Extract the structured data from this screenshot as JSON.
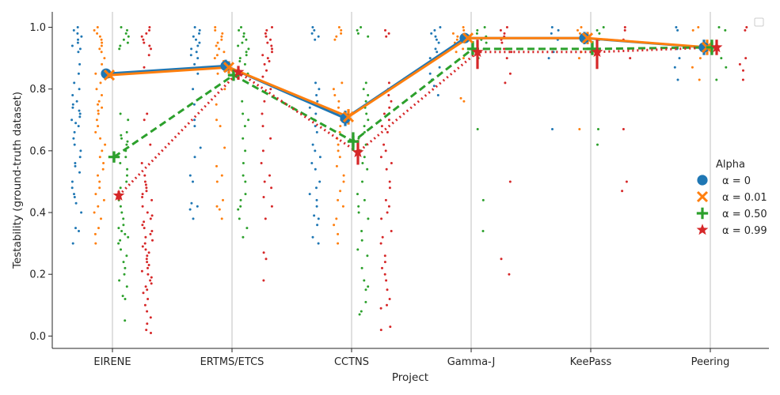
{
  "chart_data": {
    "type": "scatter",
    "title": "",
    "xlabel": "Project",
    "ylabel": "Testability (ground-truth dataset)",
    "ylim": [
      -0.04,
      1.05
    ],
    "yticks": [
      "0.0",
      "0.2",
      "0.4",
      "0.6",
      "0.8",
      "1.0"
    ],
    "categories": [
      "EIRENE",
      "ERTMS/ETCS",
      "CCTNS",
      "Gamma-J",
      "KeePass",
      "Peering"
    ],
    "grid": "vertical at categories",
    "legend": {
      "title": "Alpha",
      "position": "right",
      "entries": [
        "α = 0",
        "α = 0.01",
        "α = 0.50",
        "α = 0.99"
      ]
    },
    "series": [
      {
        "name": "α = 0",
        "color": "#1f77b4",
        "marker": "circle",
        "linestyle": "solid",
        "means": [
          0.85,
          0.875,
          0.705,
          0.965,
          0.965,
          0.935
        ],
        "ci_low": [
          0.84,
          0.855,
          0.68,
          0.955,
          0.945,
          0.91
        ],
        "ci_high": [
          0.86,
          0.895,
          0.73,
          0.975,
          0.985,
          0.96
        ],
        "points": [
          [
            1.0,
            0.99,
            0.98,
            0.97,
            0.96,
            0.95,
            0.94,
            0.93,
            0.92,
            0.88,
            0.85,
            0.82,
            0.8,
            0.78,
            0.76,
            0.75,
            0.74,
            0.73,
            0.72,
            0.71,
            0.7,
            0.69,
            0.68,
            0.66,
            0.64,
            0.62,
            0.6,
            0.58,
            0.56,
            0.55,
            0.53,
            0.5,
            0.48,
            0.46,
            0.45,
            0.43,
            0.4,
            0.35,
            0.34,
            0.3
          ],
          [
            1.0,
            0.99,
            0.98,
            0.97,
            0.96,
            0.95,
            0.94,
            0.93,
            0.92,
            0.91,
            0.9,
            0.88,
            0.85,
            0.8,
            0.75,
            0.7,
            0.68,
            0.61,
            0.58,
            0.52,
            0.5,
            0.43,
            0.42,
            0.41,
            0.38
          ],
          [
            1.0,
            0.99,
            0.98,
            0.97,
            0.96,
            0.82,
            0.8,
            0.78,
            0.76,
            0.74,
            0.72,
            0.7,
            0.68,
            0.66,
            0.62,
            0.6,
            0.58,
            0.56,
            0.54,
            0.5,
            0.48,
            0.46,
            0.44,
            0.42,
            0.39,
            0.38,
            0.36,
            0.32,
            0.3
          ],
          [
            1.0,
            0.99,
            0.98,
            0.97,
            0.96,
            0.95,
            0.93,
            0.92,
            0.9,
            0.87,
            0.85,
            0.83,
            0.81,
            0.78
          ],
          [
            1.0,
            0.99,
            0.98,
            0.96,
            0.93,
            0.92,
            0.9,
            0.67
          ],
          [
            1.0,
            0.99,
            0.93,
            0.9,
            0.87,
            0.83
          ]
        ]
      },
      {
        "name": "α = 0.01",
        "color": "#ff7f0e",
        "marker": "x",
        "linestyle": "solid",
        "means": [
          0.845,
          0.87,
          0.71,
          0.965,
          0.965,
          0.935
        ],
        "ci_low": [
          0.835,
          0.85,
          0.685,
          0.955,
          0.945,
          0.91
        ],
        "ci_high": [
          0.855,
          0.89,
          0.735,
          0.975,
          0.985,
          0.96
        ],
        "points": [
          [
            1.0,
            0.99,
            0.98,
            0.97,
            0.96,
            0.95,
            0.94,
            0.93,
            0.92,
            0.9,
            0.88,
            0.85,
            0.82,
            0.8,
            0.78,
            0.76,
            0.75,
            0.74,
            0.73,
            0.72,
            0.7,
            0.68,
            0.66,
            0.64,
            0.62,
            0.6,
            0.58,
            0.56,
            0.54,
            0.52,
            0.5,
            0.48,
            0.46,
            0.44,
            0.42,
            0.4,
            0.38,
            0.35,
            0.33,
            0.3
          ],
          [
            1.0,
            0.99,
            0.98,
            0.97,
            0.96,
            0.95,
            0.94,
            0.93,
            0.92,
            0.91,
            0.9,
            0.89,
            0.85,
            0.8,
            0.75,
            0.7,
            0.68,
            0.61,
            0.55,
            0.52,
            0.5,
            0.44,
            0.42,
            0.41,
            0.38
          ],
          [
            1.0,
            0.99,
            0.98,
            0.97,
            0.96,
            0.82,
            0.8,
            0.78,
            0.76,
            0.74,
            0.72,
            0.7,
            0.68,
            0.66,
            0.64,
            0.62,
            0.6,
            0.58,
            0.55,
            0.52,
            0.5,
            0.47,
            0.44,
            0.42,
            0.38,
            0.36,
            0.33,
            0.3
          ],
          [
            1.0,
            0.99,
            0.98,
            0.97,
            0.96,
            0.95,
            0.93,
            0.92,
            0.9,
            0.77,
            0.76
          ],
          [
            1.0,
            0.99,
            0.98,
            0.96,
            0.93,
            0.92,
            0.9,
            0.67
          ],
          [
            1.0,
            0.99,
            0.93,
            0.9,
            0.87,
            0.83
          ]
        ]
      },
      {
        "name": "α = 0.50",
        "color": "#2ca02c",
        "marker": "plus",
        "linestyle": "dashed",
        "means": [
          0.58,
          0.845,
          0.63,
          0.93,
          0.93,
          0.935
        ],
        "ci_low": [
          0.565,
          0.83,
          0.6,
          0.91,
          0.91,
          0.91
        ],
        "ci_high": [
          0.595,
          0.86,
          0.66,
          0.955,
          0.955,
          0.96
        ],
        "points": [
          [
            1.0,
            0.99,
            0.98,
            0.97,
            0.96,
            0.95,
            0.94,
            0.93,
            0.72,
            0.7,
            0.66,
            0.65,
            0.64,
            0.63,
            0.62,
            0.6,
            0.58,
            0.56,
            0.54,
            0.52,
            0.5,
            0.48,
            0.46,
            0.44,
            0.42,
            0.4,
            0.38,
            0.36,
            0.35,
            0.34,
            0.33,
            0.32,
            0.31,
            0.3,
            0.28,
            0.26,
            0.24,
            0.22,
            0.2,
            0.18,
            0.16,
            0.13,
            0.12,
            0.05
          ],
          [
            1.0,
            0.99,
            0.98,
            0.97,
            0.96,
            0.95,
            0.94,
            0.93,
            0.92,
            0.91,
            0.9,
            0.89,
            0.88,
            0.85,
            0.76,
            0.72,
            0.7,
            0.68,
            0.64,
            0.6,
            0.56,
            0.52,
            0.5,
            0.46,
            0.44,
            0.42,
            0.41,
            0.38,
            0.35,
            0.32
          ],
          [
            1.0,
            0.99,
            0.98,
            0.97,
            0.82,
            0.8,
            0.78,
            0.76,
            0.74,
            0.72,
            0.7,
            0.68,
            0.66,
            0.64,
            0.62,
            0.6,
            0.58,
            0.56,
            0.54,
            0.5,
            0.46,
            0.44,
            0.42,
            0.4,
            0.38,
            0.34,
            0.31,
            0.28,
            0.26,
            0.22,
            0.18,
            0.16,
            0.15,
            0.11,
            0.08,
            0.07
          ],
          [
            1.0,
            0.99,
            0.98,
            0.97,
            0.96,
            0.95,
            0.93,
            0.92,
            0.9,
            0.67,
            0.44,
            0.34
          ],
          [
            1.0,
            0.99,
            0.98,
            0.96,
            0.93,
            0.67,
            0.62
          ],
          [
            1.0,
            0.99,
            0.93,
            0.9,
            0.87,
            0.83
          ]
        ]
      },
      {
        "name": "α = 0.99",
        "color": "#d62728",
        "marker": "star",
        "linestyle": "dotted",
        "means": [
          0.455,
          0.855,
          0.595,
          0.92,
          0.92,
          0.935
        ],
        "ci_low": [
          0.44,
          0.83,
          0.555,
          0.865,
          0.865,
          0.91
        ],
        "ci_high": [
          0.47,
          0.875,
          0.635,
          0.96,
          0.96,
          0.96
        ],
        "points": [
          [
            1.0,
            0.99,
            0.98,
            0.97,
            0.96,
            0.95,
            0.94,
            0.93,
            0.91,
            0.87,
            0.72,
            0.7,
            0.62,
            0.56,
            0.52,
            0.5,
            0.49,
            0.48,
            0.47,
            0.46,
            0.45,
            0.44,
            0.42,
            0.4,
            0.39,
            0.38,
            0.37,
            0.36,
            0.35,
            0.34,
            0.33,
            0.32,
            0.31,
            0.3,
            0.29,
            0.28,
            0.27,
            0.26,
            0.25,
            0.24,
            0.23,
            0.22,
            0.21,
            0.2,
            0.19,
            0.18,
            0.17,
            0.16,
            0.15,
            0.14,
            0.12,
            0.1,
            0.08,
            0.06,
            0.04,
            0.02,
            0.01
          ],
          [
            1.0,
            0.99,
            0.98,
            0.97,
            0.96,
            0.95,
            0.94,
            0.93,
            0.92,
            0.91,
            0.9,
            0.89,
            0.88,
            0.86,
            0.84,
            0.8,
            0.76,
            0.72,
            0.68,
            0.64,
            0.6,
            0.56,
            0.52,
            0.5,
            0.48,
            0.45,
            0.42,
            0.38,
            0.27,
            0.25,
            0.18
          ],
          [
            0.99,
            0.98,
            0.97,
            0.82,
            0.8,
            0.78,
            0.76,
            0.74,
            0.72,
            0.7,
            0.68,
            0.66,
            0.62,
            0.6,
            0.58,
            0.56,
            0.54,
            0.5,
            0.48,
            0.44,
            0.42,
            0.4,
            0.38,
            0.34,
            0.32,
            0.3,
            0.26,
            0.24,
            0.22,
            0.2,
            0.18,
            0.15,
            0.12,
            0.1,
            0.09,
            0.03,
            0.02
          ],
          [
            1.0,
            0.99,
            0.98,
            0.97,
            0.96,
            0.95,
            0.93,
            0.92,
            0.9,
            0.85,
            0.82,
            0.5,
            0.25,
            0.2
          ],
          [
            1.0,
            0.99,
            0.96,
            0.93,
            0.9,
            0.67,
            0.5,
            0.47
          ],
          [
            1.0,
            0.99,
            0.9,
            0.88,
            0.86,
            0.83
          ]
        ]
      }
    ]
  }
}
